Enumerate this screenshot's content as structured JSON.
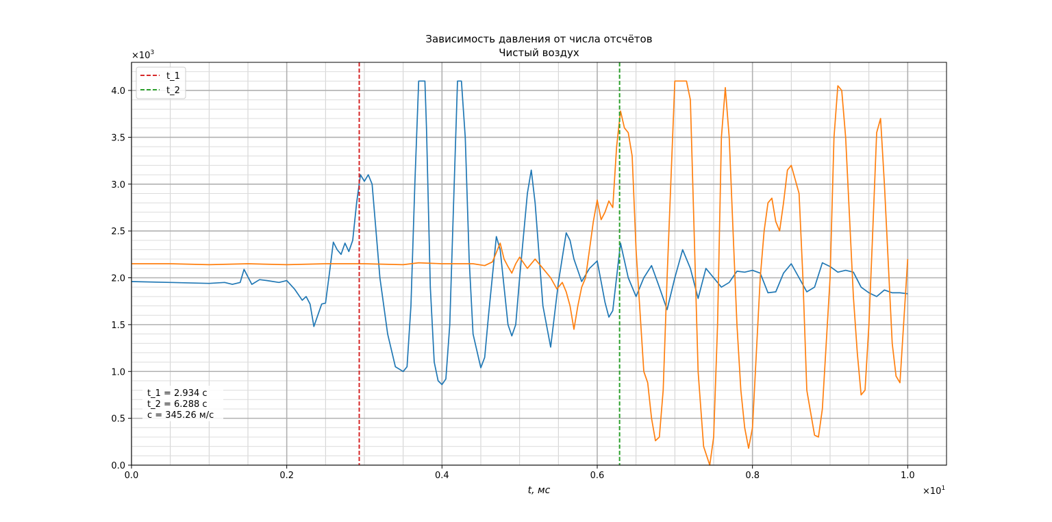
{
  "chart_data": {
    "type": "line",
    "title": "Зависимость давления от числа отсчётов",
    "subtitle": "Чистый воздух",
    "xlabel": "t, мс",
    "ylabel": "",
    "x_multiplier_label": "×10",
    "x_multiplier_exp": "1",
    "y_multiplier_label": "×10",
    "y_multiplier_exp": "3",
    "xlim": [
      0.0,
      1.05
    ],
    "ylim": [
      0.0,
      4.3
    ],
    "x_ticks": [
      0.0,
      0.2,
      0.4,
      0.6,
      0.8,
      1.0
    ],
    "x_tick_labels": [
      "0.0",
      "0.2",
      "0.4",
      "0.6",
      "0.8",
      "1.0"
    ],
    "y_ticks": [
      0.0,
      0.5,
      1.0,
      1.5,
      2.0,
      2.5,
      3.0,
      3.5,
      4.0
    ],
    "y_tick_labels": [
      "0.0",
      "0.5",
      "1.0",
      "1.5",
      "2.0",
      "2.5",
      "3.0",
      "3.5",
      "4.0"
    ],
    "grid": true,
    "legend_position": "top-left",
    "vlines": [
      {
        "name": "t_1",
        "x": 0.2934,
        "color": "#d62728"
      },
      {
        "name": "t_2",
        "x": 0.6288,
        "color": "#2ca02c"
      }
    ],
    "annotation": {
      "position": "bottom-left",
      "lines": [
        "t_1 = 2.934 с",
        "t_2 = 6.288 с",
        "c = 345.26 м/с"
      ]
    },
    "series": [
      {
        "color": "#1f77b4",
        "x": [
          0.0,
          0.05,
          0.1,
          0.12,
          0.13,
          0.14,
          0.145,
          0.155,
          0.165,
          0.175,
          0.19,
          0.2,
          0.21,
          0.22,
          0.225,
          0.23,
          0.235,
          0.24,
          0.245,
          0.25,
          0.255,
          0.26,
          0.265,
          0.27,
          0.275,
          0.28,
          0.285,
          0.29,
          0.295,
          0.3,
          0.305,
          0.31,
          0.32,
          0.33,
          0.34,
          0.35,
          0.355,
          0.36,
          0.365,
          0.37,
          0.378,
          0.38,
          0.385,
          0.39,
          0.395,
          0.4,
          0.405,
          0.41,
          0.415,
          0.42,
          0.425,
          0.43,
          0.435,
          0.44,
          0.45,
          0.455,
          0.46,
          0.47,
          0.475,
          0.48,
          0.485,
          0.49,
          0.495,
          0.5,
          0.51,
          0.515,
          0.52,
          0.53,
          0.54,
          0.55,
          0.56,
          0.565,
          0.57,
          0.58,
          0.59,
          0.6,
          0.61,
          0.615,
          0.62,
          0.63,
          0.64,
          0.65,
          0.66,
          0.67,
          0.68,
          0.69,
          0.7,
          0.71,
          0.72,
          0.73,
          0.74,
          0.75,
          0.76,
          0.77,
          0.78,
          0.79,
          0.8,
          0.81,
          0.82,
          0.83,
          0.84,
          0.85,
          0.86,
          0.87,
          0.88,
          0.89,
          0.9,
          0.91,
          0.92,
          0.93,
          0.94,
          0.95,
          0.96,
          0.97,
          0.98,
          0.99,
          1.0
        ],
        "y": [
          1.96,
          1.95,
          1.94,
          1.95,
          1.93,
          1.95,
          2.09,
          1.93,
          1.98,
          1.97,
          1.95,
          1.97,
          1.88,
          1.76,
          1.8,
          1.72,
          1.48,
          1.6,
          1.72,
          1.73,
          2.05,
          2.38,
          2.3,
          2.25,
          2.37,
          2.28,
          2.4,
          2.8,
          3.1,
          3.03,
          3.1,
          3.0,
          2.0,
          1.4,
          1.05,
          1.0,
          1.05,
          1.7,
          3.0,
          4.1,
          4.1,
          3.6,
          1.9,
          1.1,
          0.9,
          0.86,
          0.92,
          1.5,
          2.8,
          4.1,
          4.1,
          3.5,
          2.2,
          1.4,
          1.04,
          1.15,
          1.6,
          2.44,
          2.3,
          1.9,
          1.5,
          1.38,
          1.5,
          2.0,
          2.9,
          3.15,
          2.8,
          1.7,
          1.26,
          1.95,
          2.48,
          2.4,
          2.2,
          1.96,
          2.1,
          2.18,
          1.74,
          1.58,
          1.65,
          2.37,
          2.0,
          1.8,
          2.0,
          2.13,
          1.9,
          1.66,
          2.0,
          2.3,
          2.1,
          1.78,
          2.1,
          2.0,
          1.9,
          1.95,
          2.07,
          2.06,
          2.08,
          2.05,
          1.84,
          1.85,
          2.05,
          2.15,
          2.0,
          1.85,
          1.9,
          2.16,
          2.12,
          2.06,
          2.08,
          2.06,
          1.9,
          1.84,
          1.8,
          1.87,
          1.84,
          1.84,
          1.83
        ]
      },
      {
        "color": "#ff7f0e",
        "x": [
          0.0,
          0.05,
          0.1,
          0.15,
          0.2,
          0.25,
          0.3,
          0.35,
          0.37,
          0.4,
          0.44,
          0.455,
          0.465,
          0.47,
          0.475,
          0.48,
          0.485,
          0.49,
          0.495,
          0.5,
          0.51,
          0.52,
          0.53,
          0.54,
          0.548,
          0.555,
          0.56,
          0.565,
          0.57,
          0.575,
          0.58,
          0.585,
          0.59,
          0.595,
          0.6,
          0.605,
          0.61,
          0.615,
          0.62,
          0.625,
          0.63,
          0.635,
          0.64,
          0.645,
          0.65,
          0.66,
          0.665,
          0.67,
          0.675,
          0.68,
          0.685,
          0.69,
          0.7,
          0.71,
          0.715,
          0.72,
          0.73,
          0.737,
          0.745,
          0.75,
          0.755,
          0.76,
          0.765,
          0.77,
          0.775,
          0.78,
          0.785,
          0.79,
          0.795,
          0.8,
          0.81,
          0.815,
          0.82,
          0.825,
          0.83,
          0.835,
          0.84,
          0.845,
          0.85,
          0.86,
          0.865,
          0.87,
          0.88,
          0.885,
          0.89,
          0.9,
          0.905,
          0.91,
          0.915,
          0.92,
          0.93,
          0.935,
          0.94,
          0.945,
          0.95,
          0.955,
          0.96,
          0.965,
          0.97,
          0.98,
          0.985,
          0.99,
          1.0
        ],
        "y": [
          2.15,
          2.15,
          2.14,
          2.15,
          2.14,
          2.15,
          2.15,
          2.14,
          2.16,
          2.15,
          2.15,
          2.13,
          2.17,
          2.27,
          2.37,
          2.2,
          2.12,
          2.05,
          2.15,
          2.22,
          2.1,
          2.2,
          2.1,
          2.0,
          1.88,
          1.95,
          1.85,
          1.7,
          1.45,
          1.7,
          1.9,
          2.0,
          2.3,
          2.6,
          2.83,
          2.62,
          2.7,
          2.82,
          2.75,
          3.4,
          3.78,
          3.6,
          3.55,
          3.3,
          2.3,
          1.0,
          0.88,
          0.5,
          0.26,
          0.3,
          0.8,
          2.0,
          4.1,
          4.1,
          4.1,
          3.9,
          1.0,
          0.2,
          0.0,
          0.3,
          1.5,
          3.5,
          4.03,
          3.5,
          2.5,
          1.5,
          0.8,
          0.4,
          0.18,
          0.4,
          2.0,
          2.5,
          2.8,
          2.85,
          2.6,
          2.5,
          2.8,
          3.15,
          3.2,
          2.9,
          2.0,
          0.8,
          0.32,
          0.3,
          0.6,
          2.0,
          3.5,
          4.05,
          4.0,
          3.5,
          1.8,
          1.2,
          0.75,
          0.8,
          1.5,
          2.5,
          3.55,
          3.7,
          3.0,
          1.3,
          0.95,
          0.88,
          2.2
        ]
      }
    ]
  }
}
